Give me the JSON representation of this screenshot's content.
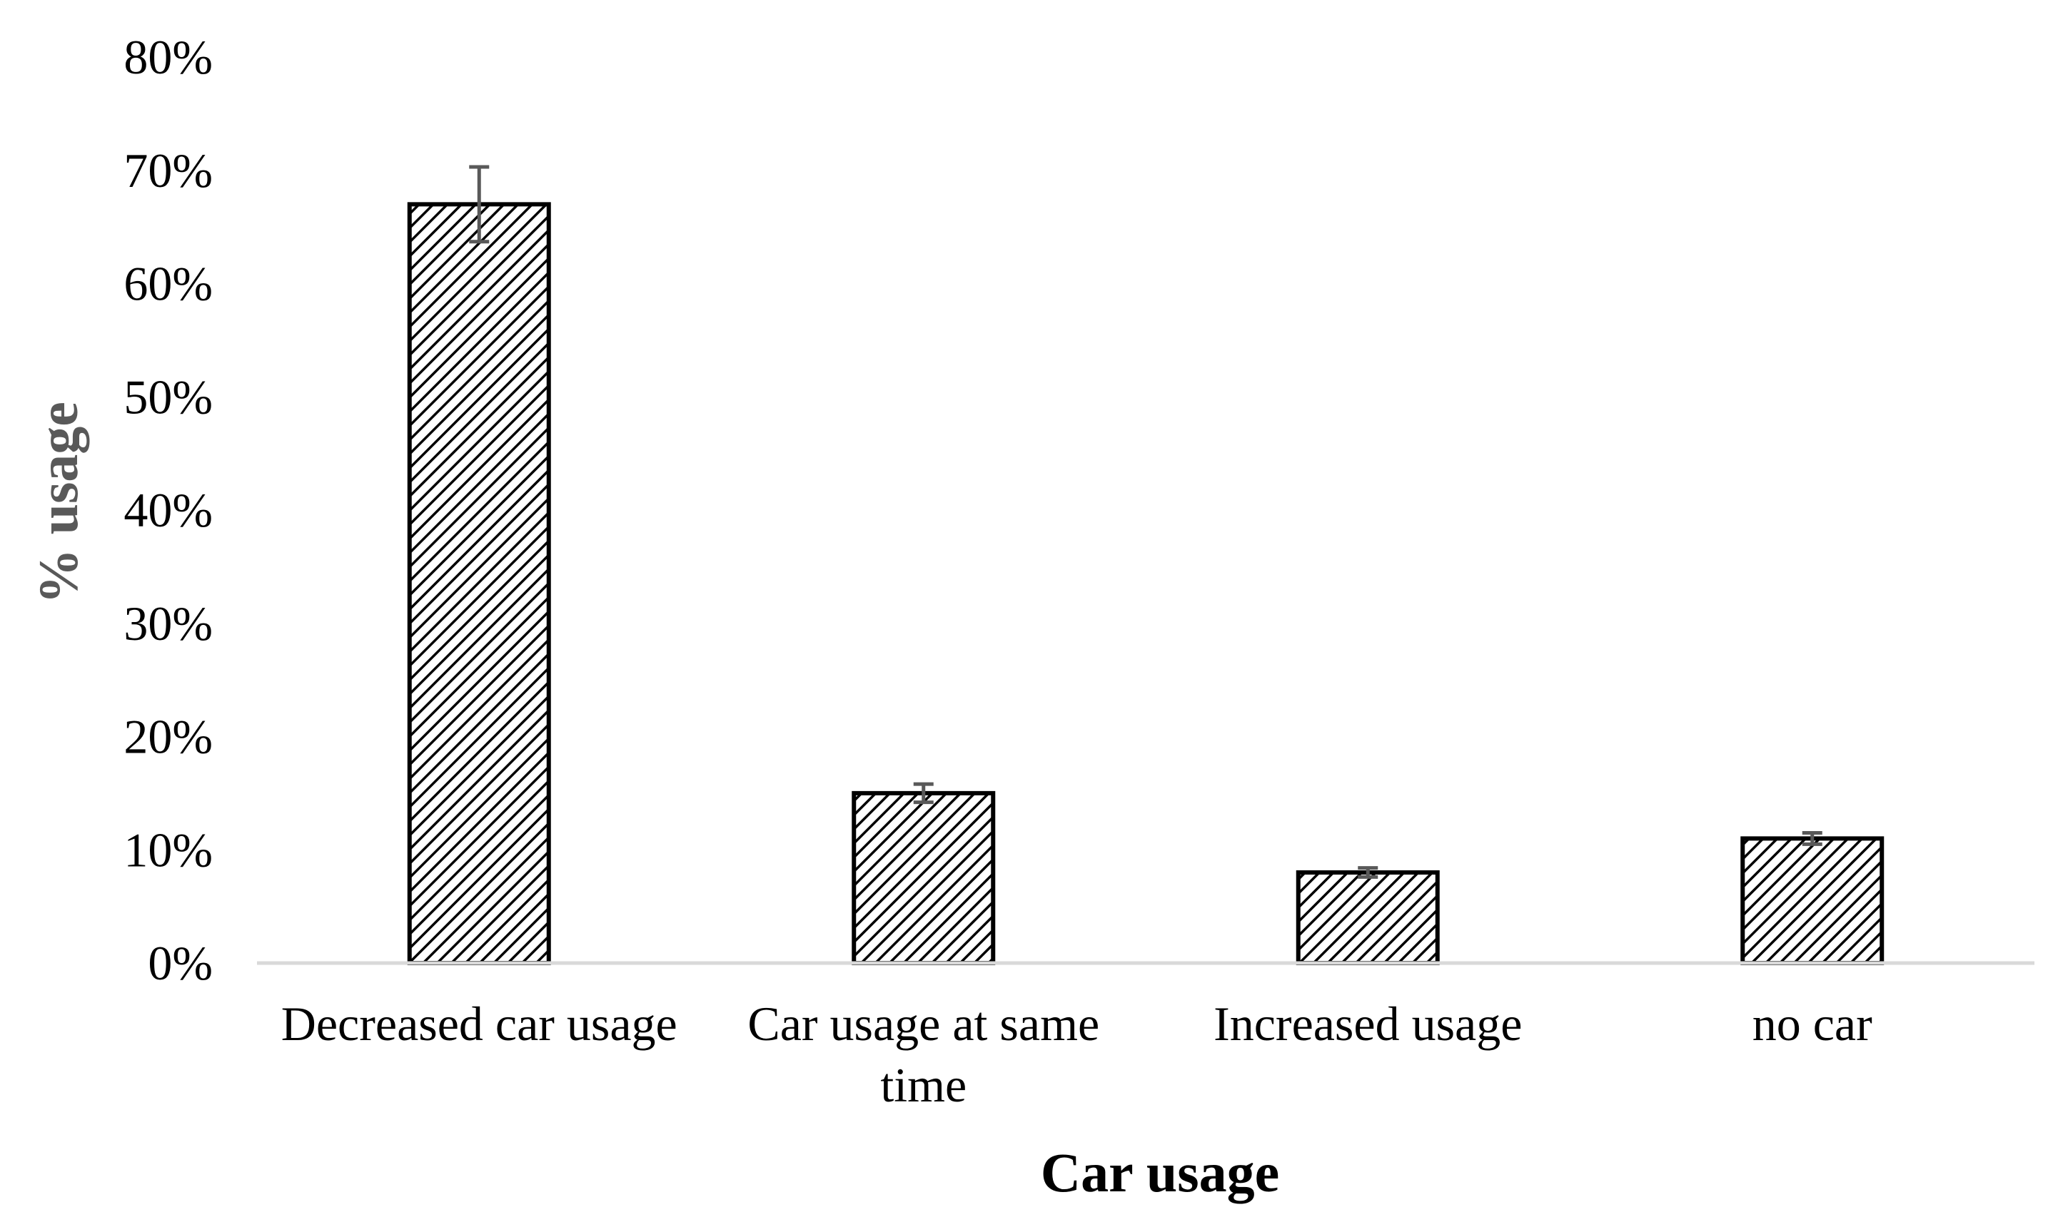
{
  "chart_data": {
    "type": "bar",
    "title": "",
    "xlabel": "Car usage",
    "ylabel": "% usage",
    "categories": [
      [
        "Decreased car usage"
      ],
      [
        "Car usage at same",
        "time"
      ],
      [
        "Increased usage"
      ],
      [
        "no car"
      ]
    ],
    "values": [
      67,
      15,
      8,
      11
    ],
    "error_bars": [
      3.3,
      0.8,
      0.4,
      0.5
    ],
    "ylim": [
      0,
      80
    ],
    "yticks": [
      0,
      10,
      20,
      30,
      40,
      50,
      60,
      70,
      80
    ],
    "ytick_labels": [
      "0%",
      "10%",
      "20%",
      "30%",
      "40%",
      "50%",
      "60%",
      "70%",
      "80%"
    ],
    "grid": false,
    "legend": "none",
    "colors": {
      "bar_fill": "#ffffff",
      "bar_hatch": "#000000",
      "bar_outline": "#000000",
      "axis_line": "#d9d9d9",
      "error_bar": "#595959",
      "ylabel_color": "#595959",
      "xlabel_color": "#000000"
    }
  }
}
